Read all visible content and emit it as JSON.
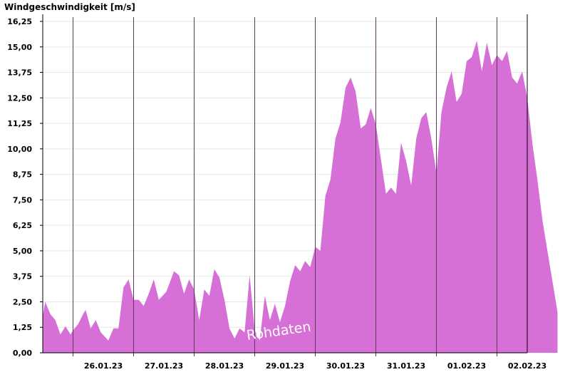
{
  "chart_data": {
    "type": "area",
    "title": "Windgeschwindigkeit [m/s]",
    "annotation": "Rohdaten",
    "xlabel": "",
    "ylabel": "Windgeschwindigkeit [m/s]",
    "ylim": [
      0,
      16.25
    ],
    "yticks": [
      "0,00",
      "1,25",
      "2,50",
      "3,75",
      "5,00",
      "6,25",
      "7,50",
      "8,75",
      "10,00",
      "11,25",
      "12,50",
      "13,75",
      "15,00",
      "16,25"
    ],
    "xticks": [
      "26.01.23",
      "27.01.23",
      "28.01.23",
      "29.01.23",
      "30.01.23",
      "31.01.23",
      "01.02.23",
      "02.02.23"
    ],
    "grid": true,
    "legend": "none",
    "colors": {
      "fill": "#d670d6",
      "grid": "#e6e6e6",
      "day_line": "#5a3a5a",
      "axis": "#000000"
    },
    "x": [
      "25.01.23 12:00",
      "25.01.23 13:00",
      "25.01.23 15:00",
      "25.01.23 17:00",
      "25.01.23 19:00",
      "25.01.23 21:00",
      "25.01.23 23:00",
      "26.01.23 00:00",
      "26.01.23 02:00",
      "26.01.23 04:00",
      "26.01.23 05:00",
      "26.01.23 07:00",
      "26.01.23 09:00",
      "26.01.23 11:00",
      "26.01.23 14:00",
      "26.01.23 16:00",
      "26.01.23 18:00",
      "26.01.23 20:00",
      "26.01.23 22:00",
      "27.01.23 00:00",
      "27.01.23 02:00",
      "27.01.23 04:00",
      "27.01.23 06:00",
      "27.01.23 08:00",
      "27.01.23 10:00",
      "27.01.23 13:00",
      "27.01.23 16:00",
      "27.01.23 18:00",
      "27.01.23 20:00",
      "27.01.23 22:00",
      "28.01.23 00:00",
      "28.01.23 02:00",
      "28.01.23 04:00",
      "28.01.23 06:00",
      "28.01.23 08:00",
      "28.01.23 10:00",
      "28.01.23 12:00",
      "28.01.23 14:00",
      "28.01.23 16:00",
      "28.01.23 18:00",
      "28.01.23 20:00",
      "28.01.23 22:00",
      "29.01.23 00:00",
      "29.01.23 02:00",
      "29.01.23 04:00",
      "29.01.23 06:00",
      "29.01.23 08:00",
      "29.01.23 10:00",
      "29.01.23 12:00",
      "29.01.23 14:00",
      "29.01.23 16:00",
      "29.01.23 18:00",
      "29.01.23 20:00",
      "29.01.23 22:00",
      "30.01.23 00:00",
      "30.01.23 02:00",
      "30.01.23 04:00",
      "30.01.23 06:00",
      "30.01.23 08:00",
      "30.01.23 10:00",
      "30.01.23 12:00",
      "30.01.23 14:00",
      "30.01.23 16:00",
      "30.01.23 18:00",
      "30.01.23 20:00",
      "30.01.23 22:00",
      "31.01.23 00:00",
      "31.01.23 02:00",
      "31.01.23 04:00",
      "31.01.23 06:00",
      "31.01.23 08:00",
      "31.01.23 10:00",
      "31.01.23 12:00",
      "31.01.23 14:00",
      "31.01.23 16:00",
      "31.01.23 18:00",
      "31.01.23 20:00",
      "31.01.23 22:00",
      "01.02.23 00:00",
      "01.02.23 02:00",
      "01.02.23 04:00",
      "01.02.23 06:00",
      "01.02.23 08:00",
      "01.02.23 10:00",
      "01.02.23 12:00",
      "01.02.23 14:00",
      "01.02.23 16:00",
      "01.02.23 18:00",
      "01.02.23 20:00",
      "01.02.23 22:00",
      "02.02.23 00:00",
      "02.02.23 02:00",
      "02.02.23 04:00",
      "02.02.23 06:00",
      "02.02.23 08:00",
      "02.02.23 10:00",
      "02.02.23 12:00",
      "02.02.23 14:00",
      "02.02.23 16:00",
      "02.02.23 18:00",
      "02.02.23 20:00",
      "02.02.23 22:00",
      "03.02.23 00:00"
    ],
    "values": [
      1.8,
      2.5,
      1.9,
      1.6,
      0.9,
      1.3,
      0.9,
      1.1,
      1.4,
      1.9,
      2.1,
      1.2,
      1.6,
      1.0,
      0.6,
      1.2,
      1.2,
      3.2,
      3.6,
      2.6,
      2.6,
      2.3,
      2.9,
      3.6,
      2.6,
      3.0,
      4.0,
      3.8,
      2.9,
      3.6,
      3.1,
      1.6,
      3.1,
      2.8,
      4.1,
      3.7,
      2.6,
      1.2,
      0.7,
      1.2,
      1.0,
      3.8,
      1.1,
      0.6,
      2.8,
      1.6,
      2.4,
      1.5,
      2.3,
      3.5,
      4.3,
      4.0,
      4.5,
      4.2,
      5.2,
      5.0,
      7.7,
      8.5,
      10.5,
      11.3,
      13.0,
      13.5,
      12.8,
      11.0,
      11.2,
      12.0,
      11.2,
      9.5,
      7.8,
      8.1,
      7.8,
      10.3,
      9.4,
      8.2,
      10.5,
      11.5,
      11.8,
      10.5,
      8.8,
      11.8,
      13.0,
      13.8,
      12.3,
      12.7,
      14.3,
      14.5,
      15.3,
      13.8,
      15.2,
      14.1,
      14.6,
      14.3,
      14.8,
      13.5,
      13.2,
      13.8,
      12.5,
      10.3,
      8.5,
      6.5,
      5.0,
      3.5,
      2.0
    ]
  }
}
